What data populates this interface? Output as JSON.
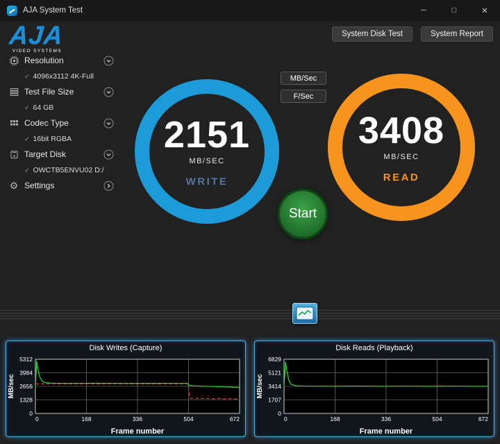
{
  "window": {
    "title": "AJA System Test",
    "controls": {
      "minimize": "─",
      "maximize": "□",
      "close": "✕"
    }
  },
  "logo": {
    "text": "AJA",
    "subtitle": "VIDEO SYSTEMS"
  },
  "header": {
    "buttons": [
      {
        "label": "System Disk Test"
      },
      {
        "label": "System Report"
      }
    ]
  },
  "sidebar": [
    {
      "label": "Resolution",
      "icon": "resolution-icon",
      "value": "4096x3112 4K-Full"
    },
    {
      "label": "Test File Size",
      "icon": "file-size-icon",
      "value": "64 GB"
    },
    {
      "label": "Codec Type",
      "icon": "codec-type-icon",
      "value": "16bit RGBA"
    },
    {
      "label": "Target Disk",
      "icon": "target-disk-icon",
      "value": "OWCTB5ENVU02 D:/"
    },
    {
      "label": "Settings",
      "icon": "gear-icon",
      "value": null
    }
  ],
  "controls": {
    "unit_buttons": [
      {
        "label": "MB/Sec"
      },
      {
        "label": "F/Sec"
      }
    ],
    "start_label": "Start"
  },
  "gauges": {
    "write": {
      "value": "2151",
      "unit": "MB/SEC",
      "label": "WRITE",
      "ring_color": "#1d9bd8",
      "label_color": "#56749b"
    },
    "read": {
      "value": "3408",
      "unit": "MB/SEC",
      "label": "READ",
      "ring_color": "#f7941e",
      "label_color": "#f7941e"
    }
  },
  "chart_data": [
    {
      "type": "line",
      "title": "Disk Writes (Capture)",
      "xlabel": "Frame number",
      "ylabel": "MB/sec",
      "xlim": [
        0,
        672
      ],
      "ylim": [
        0,
        5312
      ],
      "xticks": [
        0,
        168,
        336,
        504,
        672
      ],
      "yticks": [
        5312,
        3984,
        2656,
        1328,
        0
      ],
      "grid": true,
      "legend": "none",
      "series": [
        {
          "name": "write-average",
          "color": "#e03c31",
          "dash": "5 3",
          "points": [
            [
              0,
              2900
            ],
            [
              60,
              2905
            ],
            [
              160,
              2898
            ],
            [
              260,
              2905
            ],
            [
              360,
              2898
            ],
            [
              460,
              2905
            ],
            [
              502,
              2900
            ],
            [
              508,
              1500
            ],
            [
              524,
              1455
            ],
            [
              540,
              1495
            ],
            [
              556,
              1440
            ],
            [
              572,
              1480
            ],
            [
              588,
              1430
            ],
            [
              604,
              1470
            ],
            [
              620,
              1428
            ],
            [
              636,
              1462
            ],
            [
              652,
              1432
            ],
            [
              672,
              1448
            ]
          ]
        },
        {
          "name": "write-speed",
          "color": "#2ad82a",
          "points": [
            [
              0,
              2500
            ],
            [
              4,
              5150
            ],
            [
              8,
              4450
            ],
            [
              14,
              3600
            ],
            [
              22,
              3150
            ],
            [
              34,
              3000
            ],
            [
              60,
              2960
            ],
            [
              120,
              2952
            ],
            [
              200,
              2960
            ],
            [
              300,
              2948
            ],
            [
              400,
              2958
            ],
            [
              500,
              2950
            ],
            [
              506,
              2760
            ],
            [
              520,
              2705
            ],
            [
              552,
              2672
            ],
            [
              590,
              2645
            ],
            [
              628,
              2592
            ],
            [
              672,
              2535
            ]
          ]
        }
      ]
    },
    {
      "type": "line",
      "title": "Disk Reads (Playback)",
      "xlabel": "Frame number",
      "ylabel": "MB/sec",
      "xlim": [
        0,
        672
      ],
      "ylim": [
        0,
        6829
      ],
      "xticks": [
        0,
        168,
        336,
        504,
        672
      ],
      "yticks": [
        6829,
        5121,
        3414,
        1707,
        0
      ],
      "grid": true,
      "legend": "none",
      "series": [
        {
          "name": "read-speed",
          "color": "#2ad82a",
          "points": [
            [
              0,
              3350
            ],
            [
              5,
              6500
            ],
            [
              10,
              5200
            ],
            [
              16,
              4150
            ],
            [
              24,
              3650
            ],
            [
              40,
              3480
            ],
            [
              80,
              3442
            ],
            [
              160,
              3430
            ],
            [
              240,
              3448
            ],
            [
              320,
              3428
            ],
            [
              400,
              3442
            ],
            [
              480,
              3430
            ],
            [
              560,
              3444
            ],
            [
              620,
              3430
            ],
            [
              672,
              3436
            ]
          ]
        }
      ]
    }
  ]
}
